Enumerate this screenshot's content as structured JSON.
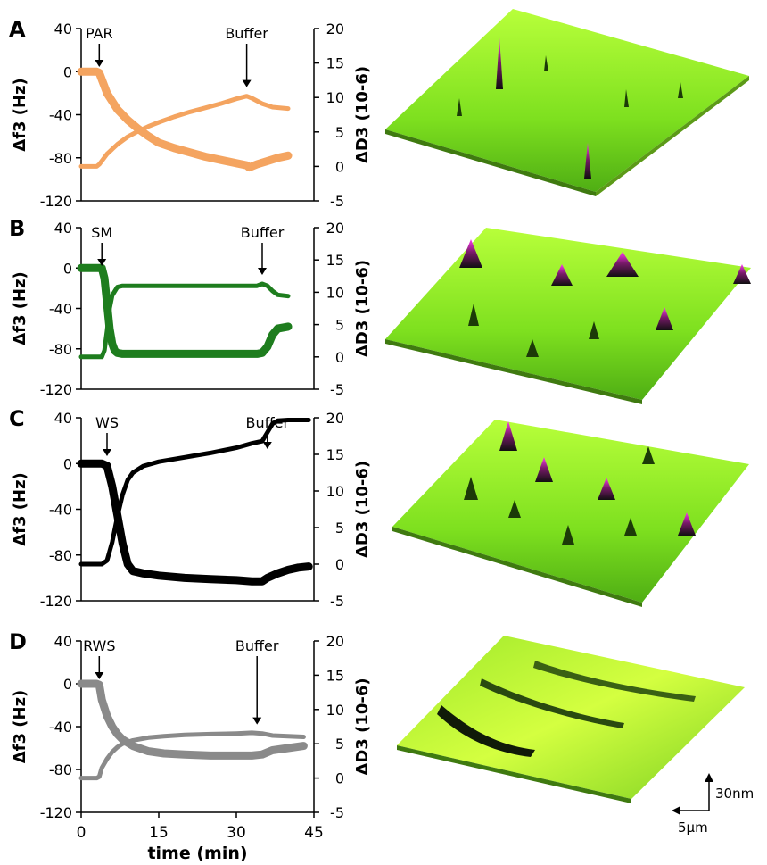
{
  "chart_data": [
    {
      "panel_label": "A",
      "type": "line",
      "reagent": "PAR",
      "color": "#f4a460",
      "y_left_label": "Δf3 (Hz)",
      "y_right_label": "ΔD3 (10-6)",
      "y_left_ticks": [
        "40",
        "0",
        "-40",
        "-80",
        "-120"
      ],
      "y_right_ticks": [
        "20",
        "15",
        "10",
        "5",
        "0",
        "-5"
      ],
      "ylim_left": [
        -120,
        40
      ],
      "ylim_right": [
        -5,
        20
      ],
      "xlim": [
        0,
        45
      ],
      "annotations": [
        {
          "text": "PAR",
          "x": 3.5
        },
        {
          "text": "Buffer",
          "x": 32
        }
      ],
      "series": [
        {
          "axis": "left",
          "thick": true,
          "x": [
            0,
            1,
            2,
            3,
            3.5,
            5,
            7,
            9,
            11,
            13,
            15,
            18,
            21,
            24,
            27,
            30,
            32,
            32.5,
            33,
            34,
            36,
            38,
            40
          ],
          "y": [
            0,
            0,
            0,
            0,
            -1,
            -20,
            -35,
            -45,
            -53,
            -60,
            -66,
            -71,
            -75,
            -79,
            -82,
            -85,
            -87,
            -89,
            -88,
            -86,
            -83,
            -80,
            -78
          ]
        },
        {
          "axis": "right",
          "thick": false,
          "x": [
            0,
            1,
            2,
            3,
            3.5,
            5,
            7,
            9,
            11,
            13,
            15,
            18,
            21,
            24,
            27,
            30,
            32,
            33,
            35,
            37,
            40
          ],
          "y": [
            0,
            0,
            0,
            0,
            0.3,
            1.8,
            3.2,
            4.3,
            5.1,
            5.8,
            6.4,
            7.2,
            7.9,
            8.5,
            9.1,
            9.8,
            10.2,
            9.9,
            9.1,
            8.6,
            8.4
          ]
        }
      ]
    },
    {
      "panel_label": "B",
      "type": "line",
      "reagent": "SM",
      "color": "#1e7d1e",
      "y_left_label": "Δf3 (Hz)",
      "y_right_label": "ΔD3 (10-6)",
      "y_left_ticks": [
        "40",
        "0",
        "-40",
        "-80",
        "-120"
      ],
      "y_right_ticks": [
        "20",
        "15",
        "10",
        "5",
        "0",
        "-5"
      ],
      "ylim_left": [
        -120,
        40
      ],
      "ylim_right": [
        -5,
        20
      ],
      "xlim": [
        0,
        45
      ],
      "annotations": [
        {
          "text": "SM",
          "x": 4
        },
        {
          "text": "Buffer",
          "x": 35
        }
      ],
      "series": [
        {
          "axis": "left",
          "thick": true,
          "x": [
            0,
            1,
            2,
            3,
            4,
            4.5,
            5,
            5.5,
            6,
            6.5,
            7,
            8,
            10,
            15,
            20,
            25,
            30,
            34,
            35,
            36,
            37,
            38,
            40
          ],
          "y": [
            0,
            0,
            0,
            0,
            0,
            -10,
            -35,
            -60,
            -75,
            -82,
            -84,
            -85,
            -85,
            -85,
            -85,
            -85,
            -85,
            -85,
            -84,
            -78,
            -66,
            -60,
            -58
          ]
        },
        {
          "axis": "right",
          "thick": false,
          "x": [
            0,
            1,
            2,
            3,
            4,
            4.5,
            5,
            5.5,
            6,
            7,
            8,
            10,
            15,
            20,
            25,
            30,
            34,
            35,
            36,
            37,
            38,
            40
          ],
          "y": [
            0,
            0,
            0,
            0,
            0,
            1,
            4,
            7.5,
            9.5,
            10.8,
            11,
            11,
            11,
            11,
            11,
            11,
            11,
            11.3,
            11,
            10.2,
            9.6,
            9.4
          ]
        }
      ]
    },
    {
      "panel_label": "C",
      "type": "line",
      "reagent": "WS",
      "color": "#000000",
      "y_left_label": "Δf3 (Hz)",
      "y_right_label": "ΔD3 (10-6)",
      "y_left_ticks": [
        "40",
        "0",
        "-40",
        "-80",
        "-120"
      ],
      "y_right_ticks": [
        "20",
        "15",
        "10",
        "5",
        "0",
        "-5"
      ],
      "ylim_left": [
        -120,
        40
      ],
      "ylim_right": [
        -5,
        20
      ],
      "xlim": [
        0,
        45
      ],
      "annotations": [
        {
          "text": "WS",
          "x": 5
        },
        {
          "text": "Buffer",
          "x": 36
        }
      ],
      "series": [
        {
          "axis": "left",
          "thick": true,
          "x": [
            0,
            1,
            2,
            3,
            4,
            5,
            6,
            7,
            8,
            9,
            10,
            12,
            15,
            20,
            25,
            30,
            33,
            35,
            36,
            38,
            40,
            42,
            44
          ],
          "y": [
            0,
            0,
            0,
            0,
            0,
            -2,
            -20,
            -45,
            -70,
            -88,
            -94,
            -96,
            -98,
            -100,
            -101,
            -102,
            -103,
            -103,
            -100,
            -96,
            -93,
            -91,
            -90
          ]
        },
        {
          "axis": "right",
          "thick": false,
          "x": [
            0,
            1,
            2,
            3,
            4,
            5,
            6,
            7,
            8,
            9,
            10,
            12,
            15,
            20,
            25,
            30,
            33,
            35,
            36,
            37,
            38,
            40,
            42,
            44
          ],
          "y": [
            0,
            0,
            0,
            0,
            0,
            0.5,
            3,
            6.5,
            9.5,
            11.5,
            12.5,
            13.4,
            14,
            14.6,
            15.2,
            15.9,
            16.5,
            16.8,
            18,
            19.2,
            19.6,
            19.7,
            19.7,
            19.7
          ]
        }
      ]
    },
    {
      "panel_label": "D",
      "type": "line",
      "reagent": "RWS",
      "color": "#8a8a8a",
      "y_left_label": "Δf3 (Hz)",
      "y_right_label": "ΔD3 (10-6)",
      "y_left_ticks": [
        "40",
        "0",
        "-40",
        "-80",
        "-120"
      ],
      "y_right_ticks": [
        "20",
        "15",
        "10",
        "5",
        "0",
        "-5"
      ],
      "ylim_left": [
        -120,
        40
      ],
      "ylim_right": [
        -5,
        20
      ],
      "xlim": [
        0,
        45
      ],
      "xlabel": "time (min)",
      "x_ticks": [
        "0",
        "15",
        "30",
        "45"
      ],
      "annotations": [
        {
          "text": "RWS",
          "x": 3.5
        },
        {
          "text": "Buffer",
          "x": 34
        }
      ],
      "series": [
        {
          "axis": "left",
          "thick": true,
          "x": [
            0,
            1,
            2,
            3,
            3.5,
            4,
            5,
            6,
            7,
            8,
            10,
            13,
            16,
            20,
            25,
            30,
            33,
            35,
            37,
            40,
            43
          ],
          "y": [
            0,
            0,
            0,
            0,
            -1,
            -15,
            -30,
            -40,
            -47,
            -52,
            -58,
            -63,
            -65,
            -66,
            -67,
            -67,
            -67,
            -66,
            -62,
            -60,
            -58
          ]
        },
        {
          "axis": "right",
          "thick": false,
          "x": [
            0,
            1,
            2,
            3,
            3.5,
            4,
            5,
            6,
            7,
            8,
            10,
            13,
            16,
            20,
            25,
            30,
            33,
            35,
            37,
            40,
            43
          ],
          "y": [
            0,
            0,
            0,
            0,
            0.2,
            1.5,
            2.8,
            3.8,
            4.5,
            5,
            5.5,
            5.9,
            6.1,
            6.3,
            6.4,
            6.5,
            6.6,
            6.5,
            6.2,
            6.1,
            6
          ]
        }
      ]
    }
  ],
  "scale_bar": {
    "vertical": "30nm",
    "horizontal": "5μm"
  }
}
